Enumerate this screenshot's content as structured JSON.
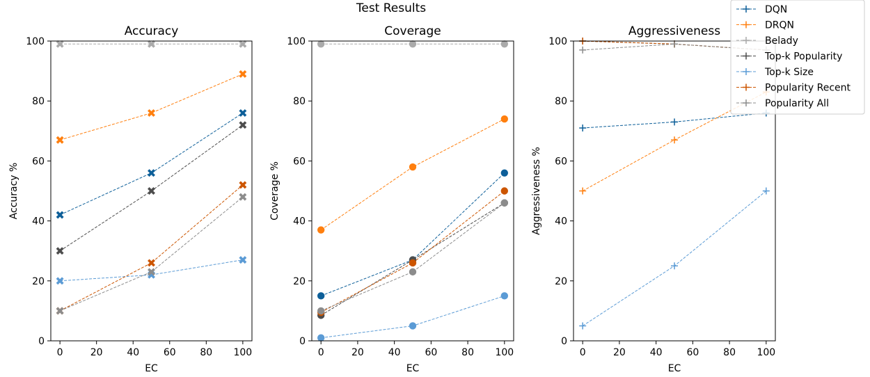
{
  "figure_title": "Test Results",
  "colors": {
    "DQN": "#0d5f99",
    "DRQN": "#ff7f0e",
    "Belady": "#aaaaaa",
    "Top-k Popularity": "#4d4d4d",
    "Top-k Size": "#5b9bd5",
    "Popularity Recent": "#cc5500",
    "Popularity All": "#8c8c8c"
  },
  "legend": [
    "DQN",
    "DRQN",
    "Belady",
    "Top-k Popularity",
    "Top-k Size",
    "Popularity Recent",
    "Popularity All"
  ],
  "chart_data": [
    {
      "type": "line",
      "title": "Accuracy",
      "xlabel": "EC",
      "ylabel": "Accuracy %",
      "marker": "x",
      "x": [
        0,
        50,
        100
      ],
      "xticks": [
        0,
        20,
        40,
        60,
        80,
        100
      ],
      "yticks": [
        0,
        20,
        40,
        60,
        80,
        100
      ],
      "xlim": [
        -5,
        105
      ],
      "ylim": [
        0,
        100
      ],
      "series": [
        {
          "name": "DQN",
          "values": [
            42,
            56,
            76
          ]
        },
        {
          "name": "DRQN",
          "values": [
            67,
            76,
            89
          ]
        },
        {
          "name": "Belady",
          "values": [
            99,
            99,
            99
          ]
        },
        {
          "name": "Top-k Popularity",
          "values": [
            30,
            50,
            72
          ]
        },
        {
          "name": "Top-k Size",
          "values": [
            20,
            22,
            27
          ]
        },
        {
          "name": "Popularity Recent",
          "values": [
            10,
            26,
            52
          ]
        },
        {
          "name": "Popularity All",
          "values": [
            10,
            23,
            48
          ]
        }
      ]
    },
    {
      "type": "line",
      "title": "Coverage",
      "xlabel": "EC",
      "ylabel": "Coverage %",
      "marker": "o",
      "x": [
        0,
        50,
        100
      ],
      "xticks": [
        0,
        20,
        40,
        60,
        80,
        100
      ],
      "yticks": [
        0,
        20,
        40,
        60,
        80,
        100
      ],
      "xlim": [
        -5,
        105
      ],
      "ylim": [
        0,
        100
      ],
      "series": [
        {
          "name": "DQN",
          "values": [
            15,
            27,
            56
          ]
        },
        {
          "name": "DRQN",
          "values": [
            37,
            58,
            74
          ]
        },
        {
          "name": "Belady",
          "values": [
            99,
            99,
            99
          ]
        },
        {
          "name": "Top-k Popularity",
          "values": [
            8.5,
            27,
            46
          ]
        },
        {
          "name": "Top-k Size",
          "values": [
            1,
            5,
            15
          ]
        },
        {
          "name": "Popularity Recent",
          "values": [
            9.5,
            26,
            50
          ]
        },
        {
          "name": "Popularity All",
          "values": [
            10,
            23,
            46
          ]
        }
      ]
    },
    {
      "type": "line",
      "title": "Aggressiveness",
      "xlabel": "EC",
      "ylabel": "Aggressiveness %",
      "marker": "+",
      "x": [
        0,
        50,
        100
      ],
      "xticks": [
        0,
        20,
        40,
        60,
        80,
        100
      ],
      "yticks": [
        0,
        20,
        40,
        60,
        80,
        100
      ],
      "xlim": [
        -5,
        105
      ],
      "ylim": [
        0,
        100
      ],
      "series": [
        {
          "name": "DQN",
          "values": [
            71,
            73,
            76
          ]
        },
        {
          "name": "DRQN",
          "values": [
            50,
            67,
            83
          ]
        },
        {
          "name": "Belady",
          "values": [
            100,
            99,
            97
          ]
        },
        {
          "name": "Top-k Popularity",
          "values": [
            100,
            99,
            97
          ]
        },
        {
          "name": "Top-k Size",
          "values": [
            5,
            25,
            50
          ]
        },
        {
          "name": "Popularity Recent",
          "values": [
            100,
            99,
            97
          ]
        },
        {
          "name": "Popularity All",
          "values": [
            97,
            99,
            97
          ]
        }
      ]
    }
  ]
}
